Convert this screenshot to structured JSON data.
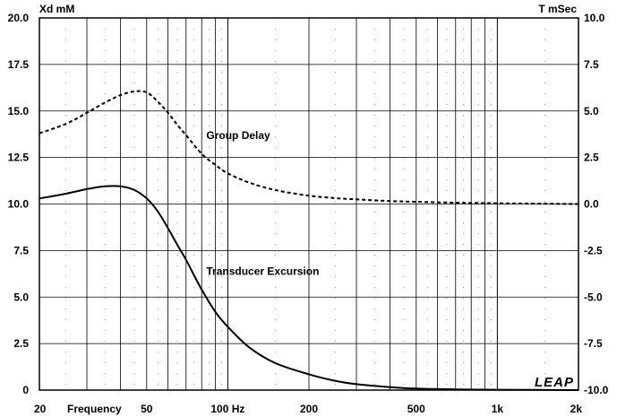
{
  "chart_data": {
    "type": "line",
    "x_scale": "log",
    "xlim": [
      20,
      2000
    ],
    "ylim": [
      0,
      20
    ],
    "y2lim": [
      -10,
      10
    ],
    "grid": true,
    "left_axis_title": "Xd mM",
    "right_axis_title": "T mSec",
    "xlabel": "Frequency",
    "logo": "LEAP",
    "x_tick_labels": [
      {
        "value": 20,
        "label": "20"
      },
      {
        "value": 50,
        "label": "50"
      },
      {
        "value": 100,
        "label": "100 Hz"
      },
      {
        "value": 200,
        "label": "200"
      },
      {
        "value": 500,
        "label": "500"
      },
      {
        "value": 1000,
        "label": "1k"
      },
      {
        "value": 2000,
        "label": "2k"
      }
    ],
    "y_ticks": [
      {
        "value": 0,
        "label": "0"
      },
      {
        "value": 2.5,
        "label": "2.5"
      },
      {
        "value": 5,
        "label": "5.0"
      },
      {
        "value": 7.5,
        "label": "7.5"
      },
      {
        "value": 10,
        "label": "10.0"
      },
      {
        "value": 12.5,
        "label": "12.5"
      },
      {
        "value": 15,
        "label": "15.0"
      },
      {
        "value": 17.5,
        "label": "17.5"
      },
      {
        "value": 20,
        "label": "20.0"
      }
    ],
    "y2_ticks": [
      {
        "value": -10,
        "label": "-10.0"
      },
      {
        "value": -7.5,
        "label": "-7.5"
      },
      {
        "value": -5,
        "label": "-5.0"
      },
      {
        "value": -2.5,
        "label": "-2.5"
      },
      {
        "value": 0,
        "label": "0.0"
      },
      {
        "value": 2.5,
        "label": "2.5"
      },
      {
        "value": 5,
        "label": "5.0"
      },
      {
        "value": 7.5,
        "label": "7.5"
      },
      {
        "value": 10,
        "label": "10.0"
      }
    ],
    "series": [
      {
        "name": "Transducer Excursion",
        "axis": "left",
        "style": "solid",
        "color": "#000000",
        "x": [
          20,
          25,
          30,
          35,
          40,
          45,
          50,
          55,
          60,
          65,
          70,
          80,
          90,
          100,
          120,
          150,
          200,
          250,
          300,
          400,
          500,
          700,
          1000,
          2000
        ],
        "y": [
          10.3,
          10.55,
          10.8,
          10.95,
          10.95,
          10.75,
          10.3,
          9.6,
          8.7,
          7.8,
          7.0,
          5.4,
          4.2,
          3.4,
          2.3,
          1.45,
          0.85,
          0.5,
          0.32,
          0.16,
          0.08,
          0.04,
          0.02,
          0.0
        ]
      },
      {
        "name": "Group Delay",
        "axis": "right",
        "style": "dashed",
        "color": "#000000",
        "x": [
          20,
          25,
          30,
          35,
          40,
          45,
          50,
          55,
          60,
          65,
          70,
          80,
          90,
          100,
          120,
          150,
          200,
          250,
          300,
          400,
          500,
          700,
          1000,
          2000
        ],
        "y": [
          3.8,
          4.3,
          4.9,
          5.45,
          5.85,
          6.05,
          6.0,
          5.5,
          4.9,
          4.25,
          3.7,
          2.7,
          2.1,
          1.65,
          1.15,
          0.75,
          0.45,
          0.32,
          0.25,
          0.16,
          0.12,
          0.07,
          0.04,
          0.0
        ]
      }
    ],
    "annotations": [
      {
        "text": "Group Delay",
        "x": 100,
        "y2": 3.5
      },
      {
        "text": "Transducer Excursion",
        "x": 100,
        "y": 6.2
      }
    ]
  }
}
